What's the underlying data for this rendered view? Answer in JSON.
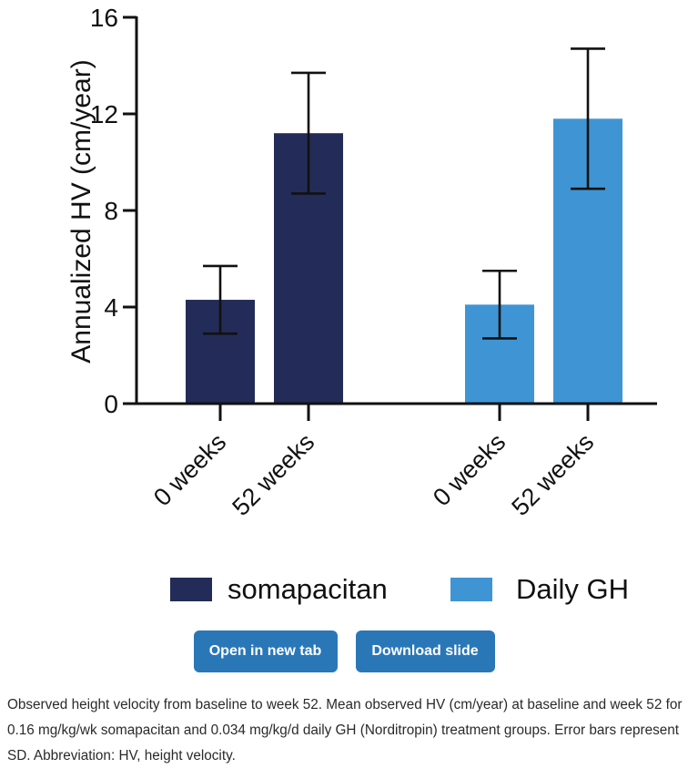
{
  "chart_data": {
    "type": "bar",
    "ylabel": "Annualized HV (cm/year)",
    "ylim": [
      0,
      16
    ],
    "yticks": [
      0,
      4,
      8,
      12,
      16
    ],
    "groups": [
      {
        "name": "somapacitan",
        "color": "#232c58",
        "bars": [
          {
            "category": "0 weeks",
            "value": 4.3,
            "sd": 1.4
          },
          {
            "category": "52 weeks",
            "value": 11.2,
            "sd": 2.5
          }
        ]
      },
      {
        "name": "Daily GH",
        "color": "#3f95d4",
        "bars": [
          {
            "category": "0 weeks",
            "value": 4.1,
            "sd": 1.4
          },
          {
            "category": "52 weeks",
            "value": 11.8,
            "sd": 2.9
          }
        ]
      }
    ],
    "legend": [
      "somapacitan",
      "Daily GH"
    ]
  },
  "buttons": {
    "open": "Open in new tab",
    "download": "Download slide"
  },
  "caption": "Observed height velocity from baseline to week 52. Mean observed HV (cm/year) at baseline and week 52 for 0.16 mg/kg/wk somapacitan and 0.034 mg/kg/d daily GH (Norditropin) treatment groups. Error bars represent SD. Abbreviation: HV, height velocity."
}
